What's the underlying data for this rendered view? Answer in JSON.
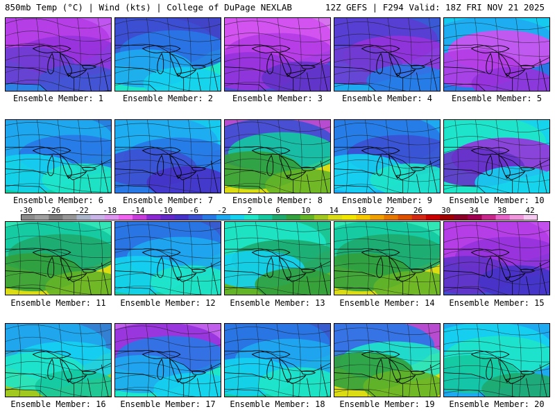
{
  "header": {
    "left": "850mb Temp (°C) | Wind (kts) | College of DuPage NEXLAB",
    "right": "12Z GEFS | F294 Valid: 18Z FRI NOV 21 2025"
  },
  "colorbar": {
    "labels": [
      "-30",
      "-26",
      "-22",
      "-18",
      "-14",
      "-10",
      "-6",
      "-2",
      "2",
      "6",
      "10",
      "14",
      "18",
      "22",
      "26",
      "30",
      "34",
      "38",
      "42"
    ],
    "colors": [
      "#8c8c8c",
      "#a0a0a0",
      "#7a7a7a",
      "#969696",
      "#aab4c8",
      "#c8b4e6",
      "#dc96f0",
      "#f064f0",
      "#c83cdc",
      "#8c28d2",
      "#6428c8",
      "#4632c8",
      "#3c50d2",
      "#2878e6",
      "#1eaaf0",
      "#14d2f0",
      "#1ee6c8",
      "#14c8a0",
      "#1eaa6e",
      "#32a03c",
      "#64b428",
      "#a0c81e",
      "#dcdc14",
      "#f0e600",
      "#f5c800",
      "#f0a000",
      "#e67800",
      "#dc5000",
      "#d22814",
      "#c80000",
      "#a00000",
      "#8c0028",
      "#a00050",
      "#c8288c",
      "#e664c8",
      "#f096dc",
      "#f5c8f0"
    ]
  },
  "panels": [
    {
      "label": "Ensemble Member: 1",
      "palette": [
        "#d250f0",
        "#b43ce6",
        "#9632dc",
        "#6e3cd2",
        "#4650d2",
        "#2d82e6"
      ]
    },
    {
      "label": "Ensemble Member: 2",
      "palette": [
        "#4632c8",
        "#3c50d2",
        "#2878e6",
        "#1eaaf0",
        "#14d2f0",
        "#1ee6c8"
      ]
    },
    {
      "label": "Ensemble Member: 3",
      "palette": [
        "#e678f0",
        "#d250f0",
        "#b43ce6",
        "#9632dc",
        "#6432c8",
        "#4650d2"
      ]
    },
    {
      "label": "Ensemble Member: 4",
      "palette": [
        "#3c50d2",
        "#5a3cd2",
        "#9632dc",
        "#6e3cd2",
        "#2878e6",
        "#1eaaf0"
      ]
    },
    {
      "label": "Ensemble Member: 5",
      "palette": [
        "#14d2f0",
        "#1eaaf0",
        "#d250f0",
        "#b43ce6",
        "#9632dc",
        "#2878e6"
      ]
    },
    {
      "label": "Ensemble Member: 6",
      "palette": [
        "#2878e6",
        "#1eaaf0",
        "#2878e6",
        "#14d2f0",
        "#1ee6c8",
        "#14c8a0"
      ]
    },
    {
      "label": "Ensemble Member: 7",
      "palette": [
        "#14d2f0",
        "#1eaaf0",
        "#2878e6",
        "#3c50d2",
        "#4632c8",
        "#2878e6"
      ]
    },
    {
      "label": "Ensemble Member: 8",
      "palette": [
        "#b43ce6",
        "#3c50d2",
        "#14c8a0",
        "#32a03c",
        "#64b428",
        "#dcdc14"
      ]
    },
    {
      "label": "Ensemble Member: 9",
      "palette": [
        "#1eaaf0",
        "#2878e6",
        "#3c50d2",
        "#14d2f0",
        "#1ee6c8",
        "#1eaaf0"
      ]
    },
    {
      "label": "Ensemble Member: 10",
      "palette": [
        "#14d2f0",
        "#1ee6c8",
        "#9632dc",
        "#6432c8",
        "#14d2f0",
        "#1ee6c8"
      ]
    },
    {
      "label": "Ensemble Member: 11",
      "palette": [
        "#1ee6c8",
        "#14c8a0",
        "#1eaa6e",
        "#32a03c",
        "#64b428",
        "#dcdc14"
      ]
    },
    {
      "label": "Ensemble Member: 12",
      "palette": [
        "#3c50d2",
        "#2878e6",
        "#1eaaf0",
        "#14d2f0",
        "#1ee6c8",
        "#14c8a0"
      ]
    },
    {
      "label": "Ensemble Member: 13",
      "palette": [
        "#14c8a0",
        "#1ee6c8",
        "#1eaa6e",
        "#14d2f0",
        "#32a03c",
        "#64b428"
      ]
    },
    {
      "label": "Ensemble Member: 14",
      "palette": [
        "#1ee6c8",
        "#14c8a0",
        "#1eaa6e",
        "#32a03c",
        "#64b428",
        "#dcdc14"
      ]
    },
    {
      "label": "Ensemble Member: 15",
      "palette": [
        "#d250f0",
        "#b43ce6",
        "#9632dc",
        "#6432c8",
        "#4632c8",
        "#3c50d2"
      ]
    },
    {
      "label": "Ensemble Member: 16",
      "palette": [
        "#2878e6",
        "#1eaaf0",
        "#14d2f0",
        "#1ee6c8",
        "#14c8a0",
        "#a0c81e"
      ]
    },
    {
      "label": "Ensemble Member: 17",
      "palette": [
        "#d250f0",
        "#9632dc",
        "#2878e6",
        "#1eaaf0",
        "#14d2f0",
        "#1ee6c8"
      ]
    },
    {
      "label": "Ensemble Member: 18",
      "palette": [
        "#3c50d2",
        "#2878e6",
        "#1eaaf0",
        "#14d2f0",
        "#1ee6c8",
        "#14c8a0"
      ]
    },
    {
      "label": "Ensemble Member: 19",
      "palette": [
        "#b43ce6",
        "#2878e6",
        "#1ee6c8",
        "#32a03c",
        "#64b428",
        "#dcdc14"
      ]
    },
    {
      "label": "Ensemble Member: 20",
      "palette": [
        "#1eaaf0",
        "#14d2f0",
        "#1ee6c8",
        "#14c8a0",
        "#1eaa6e",
        "#1eaaf0"
      ]
    }
  ]
}
